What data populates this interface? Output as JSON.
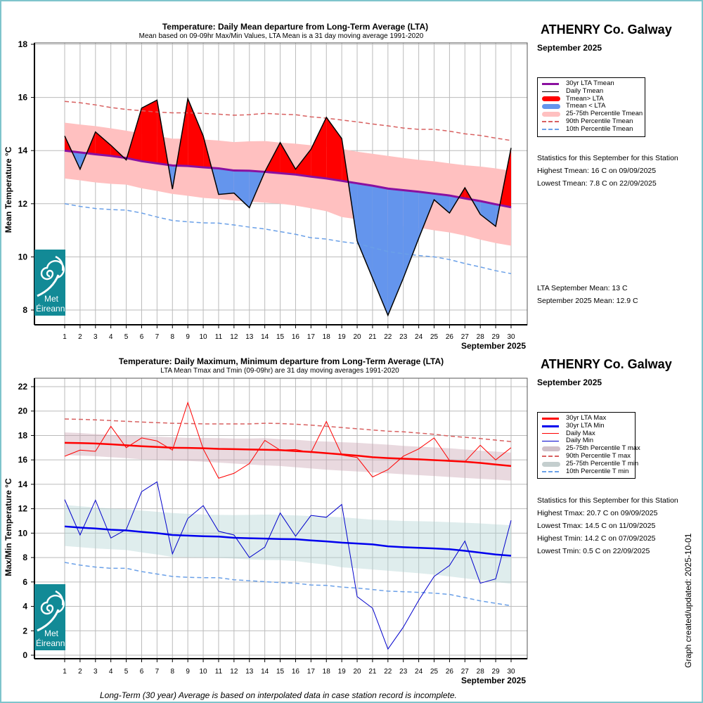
{
  "page": {
    "footnote": "Long-Term (30 year) Average is based on interpolated data in case station record is incomplete.",
    "graph_updated": "Graph created/updated:  2025-10-01",
    "logo": {
      "line1": "Met",
      "line2": "Éireann",
      "color": "#128a96"
    }
  },
  "top_panel": {
    "station": "ATHENRY Co. Galway",
    "month": "September 2025",
    "legend": [
      {
        "label": "30yr LTA Tmean",
        "style": "line",
        "color": "#8a10a0"
      },
      {
        "label": "Daily Tmean",
        "style": "thin-line",
        "color": "#000000"
      },
      {
        "label": "Tmean> LTA",
        "style": "thick",
        "color": "#ff0000"
      },
      {
        "label": "Tmean < LTA",
        "style": "thick",
        "color": "#6495ed"
      },
      {
        "label": "25-75th Percentile Tmean",
        "style": "thick",
        "color": "#ffc0c0"
      },
      {
        "label": "90th Percentile Tmean",
        "style": "dash",
        "color": "#d86060"
      },
      {
        "label": "10th Percentile Tmean",
        "style": "dash",
        "color": "#6aa0e8"
      }
    ],
    "stats_heading": "Statistics for this September for this Station",
    "stats": [
      "Highest Tmean: 16 C on 09/09/2025",
      "Lowest Tmean: 7.8 C on 22/09/2025"
    ],
    "summary": [
      "LTA September Mean: 13 C",
      "September 2025 Mean: 12.9 C"
    ]
  },
  "bottom_panel": {
    "station": "ATHENRY Co. Galway",
    "month": "September 2025",
    "legend": [
      {
        "label": "30yr LTA Max",
        "style": "line",
        "color": "#ff0000"
      },
      {
        "label": "30yr LTA Min",
        "style": "line",
        "color": "#0000ee"
      },
      {
        "label": "Daily Max",
        "style": "thin-line",
        "color": "#ff0000"
      },
      {
        "label": "Daily Min",
        "style": "thin-line",
        "color": "#0000cc"
      },
      {
        "label": "25-75th Percentile T max",
        "style": "thick",
        "color": "#d0c0c8"
      },
      {
        "label": "90th Percentile T max",
        "style": "dash",
        "color": "#d86060"
      },
      {
        "label": "25-75th Percentile T min",
        "style": "thick",
        "color": "#c4cece"
      },
      {
        "label": "10th Percentile T min",
        "style": "dash",
        "color": "#6aa0e8"
      }
    ],
    "stats_heading": "Statistics for this September for this Station",
    "stats": [
      "Highest Tmax: 20.7 C on 09/09/2025",
      "Lowest Tmax: 14.5 C on 11/09/2025",
      "Highest Tmin: 14.2 C on 07/09/2025",
      "Lowest Tmin: 0.5 C on 22/09/2025"
    ]
  },
  "chart_data": [
    {
      "type": "area",
      "title": "Temperature: Daily Mean departure from Long-Term Average (LTA)",
      "subtitle": "Mean based on 09-09hr Max/Min Values, LTA Mean is a 31 day moving average 1991-2020",
      "xlabel": "September 2025",
      "ylabel": "Mean Temperature °C",
      "ylim": [
        7.4,
        18.1
      ],
      "yticks": [
        8,
        10,
        12,
        14,
        16,
        18
      ],
      "x": [
        1,
        2,
        3,
        4,
        5,
        6,
        7,
        8,
        9,
        10,
        11,
        12,
        13,
        14,
        15,
        16,
        17,
        18,
        19,
        20,
        21,
        22,
        23,
        24,
        25,
        26,
        27,
        28,
        29,
        30
      ],
      "grid": true,
      "series": [
        {
          "name": "Daily Tmean",
          "color": "#000000",
          "values": [
            14.55,
            13.3,
            14.7,
            14.2,
            13.65,
            15.6,
            15.9,
            12.55,
            15.95,
            14.55,
            12.35,
            12.4,
            11.85,
            13.2,
            14.3,
            13.3,
            14.05,
            15.25,
            14.45,
            10.6,
            9.2,
            7.8,
            9.2,
            10.7,
            12.15,
            11.65,
            12.6,
            11.6,
            11.15,
            14.1
          ]
        },
        {
          "name": "30yr LTA Tmean",
          "color": "#8a10a0",
          "values": [
            14.0,
            13.93,
            13.86,
            13.8,
            13.72,
            13.6,
            13.52,
            13.44,
            13.42,
            13.37,
            13.33,
            13.25,
            13.24,
            13.2,
            13.15,
            13.1,
            13.02,
            12.95,
            12.86,
            12.77,
            12.68,
            12.57,
            12.51,
            12.45,
            12.38,
            12.31,
            12.2,
            12.1,
            11.98,
            11.87
          ]
        },
        {
          "name": "25th Percentile Tmean",
          "values": [
            12.95,
            12.88,
            12.8,
            12.75,
            12.72,
            12.58,
            12.48,
            12.37,
            12.3,
            12.22,
            12.18,
            12.12,
            12.08,
            12.04,
            12.0,
            11.93,
            11.83,
            11.72,
            11.5,
            11.42,
            11.3,
            11.2,
            11.15,
            11.1,
            11.0,
            10.92,
            10.8,
            10.65,
            10.52,
            10.42
          ]
        },
        {
          "name": "75th Percentile Tmean",
          "values": [
            15.05,
            14.98,
            14.92,
            14.84,
            14.75,
            14.65,
            14.55,
            14.45,
            14.45,
            14.42,
            14.38,
            14.32,
            14.35,
            14.36,
            14.3,
            14.26,
            14.2,
            14.14,
            14.06,
            13.96,
            13.88,
            13.8,
            13.72,
            13.65,
            13.6,
            13.52,
            13.45,
            13.4,
            13.33,
            13.24
          ]
        },
        {
          "name": "90th Percentile Tmean",
          "color": "#d86060",
          "dash": true,
          "values": [
            15.85,
            15.8,
            15.72,
            15.62,
            15.55,
            15.5,
            15.45,
            15.42,
            15.42,
            15.4,
            15.37,
            15.33,
            15.35,
            15.4,
            15.37,
            15.35,
            15.27,
            15.22,
            15.15,
            15.08,
            15.0,
            14.93,
            14.85,
            14.8,
            14.8,
            14.73,
            14.63,
            14.57,
            14.47,
            14.38
          ]
        },
        {
          "name": "10th Percentile Tmean",
          "color": "#6aa0e8",
          "dash": true,
          "values": [
            12.0,
            11.9,
            11.82,
            11.78,
            11.76,
            11.65,
            11.5,
            11.37,
            11.32,
            11.28,
            11.27,
            11.2,
            11.12,
            11.05,
            10.95,
            10.85,
            10.72,
            10.67,
            10.57,
            10.5,
            10.35,
            10.2,
            10.12,
            10.05,
            10.0,
            9.9,
            9.75,
            9.62,
            9.48,
            9.37
          ]
        }
      ]
    },
    {
      "type": "line",
      "title": "Temperature: Daily Maximum, Minimum departure from Long-Term Average (LTA)",
      "subtitle": "LTA Mean Tmax and Tmin (09-09hr) are 31 day moving averages 1991-2020",
      "xlabel": "September 2025",
      "ylabel": "Max/Min Temperature °C",
      "ylim": [
        -0.4,
        22.7
      ],
      "yticks": [
        0,
        2,
        4,
        6,
        8,
        10,
        12,
        14,
        16,
        18,
        20,
        22
      ],
      "x": [
        1,
        2,
        3,
        4,
        5,
        6,
        7,
        8,
        9,
        10,
        11,
        12,
        13,
        14,
        15,
        16,
        17,
        18,
        19,
        20,
        21,
        22,
        23,
        24,
        25,
        26,
        27,
        28,
        29,
        30
      ],
      "grid": true,
      "series": [
        {
          "name": "Daily Max",
          "color": "#ff0000",
          "values": [
            16.3,
            16.8,
            16.7,
            18.75,
            17.0,
            17.8,
            17.55,
            16.8,
            20.7,
            16.9,
            14.5,
            14.9,
            15.7,
            17.6,
            16.8,
            16.85,
            16.6,
            19.15,
            16.4,
            16.2,
            14.6,
            15.2,
            16.3,
            16.9,
            17.8,
            15.95,
            15.85,
            17.2,
            16.0,
            17.0
          ]
        },
        {
          "name": "Daily Min",
          "color": "#0000cc",
          "values": [
            12.75,
            9.85,
            12.7,
            9.6,
            10.3,
            13.4,
            14.2,
            8.3,
            11.2,
            12.25,
            10.15,
            9.85,
            8.0,
            8.85,
            11.65,
            9.75,
            11.45,
            11.3,
            12.35,
            4.8,
            3.85,
            0.5,
            2.3,
            4.5,
            6.45,
            7.35,
            9.35,
            5.9,
            6.25,
            11.05
          ]
        },
        {
          "name": "30yr LTA Max",
          "color": "#ff0000",
          "values": [
            17.4,
            17.38,
            17.34,
            17.28,
            17.2,
            17.12,
            17.06,
            17.0,
            16.98,
            16.95,
            16.9,
            16.88,
            16.85,
            16.83,
            16.8,
            16.72,
            16.65,
            16.55,
            16.45,
            16.35,
            16.22,
            16.15,
            16.1,
            16.05,
            15.98,
            15.92,
            15.85,
            15.75,
            15.62,
            15.5
          ]
        },
        {
          "name": "30yr LTA Min",
          "color": "#0000ee",
          "values": [
            10.55,
            10.45,
            10.38,
            10.28,
            10.22,
            10.1,
            10.0,
            9.85,
            9.8,
            9.75,
            9.72,
            9.62,
            9.58,
            9.55,
            9.52,
            9.5,
            9.4,
            9.32,
            9.22,
            9.15,
            9.08,
            8.92,
            8.85,
            8.8,
            8.75,
            8.68,
            8.55,
            8.4,
            8.25,
            8.15
          ]
        },
        {
          "name": "25th Percentile T max",
          "values": [
            16.4,
            16.35,
            16.3,
            16.22,
            16.15,
            16.05,
            16.0,
            15.95,
            15.92,
            15.85,
            15.78,
            15.7,
            15.62,
            15.55,
            15.5,
            15.4,
            15.3,
            15.2,
            15.12,
            15.05,
            14.98,
            14.9,
            14.82,
            14.75,
            14.68,
            14.6,
            14.52,
            14.45,
            14.38,
            14.3
          ]
        },
        {
          "name": "75th Percentile T max",
          "values": [
            18.25,
            18.2,
            18.12,
            18.05,
            18.0,
            17.95,
            17.9,
            17.85,
            17.8,
            17.8,
            17.78,
            17.75,
            17.75,
            17.78,
            17.7,
            17.65,
            17.55,
            17.5,
            17.45,
            17.4,
            17.32,
            17.25,
            17.15,
            17.08,
            17.02,
            16.95,
            16.85,
            16.75,
            16.68,
            16.6
          ]
        },
        {
          "name": "90th Percentile T max",
          "color": "#d86060",
          "dash": true,
          "values": [
            19.35,
            19.32,
            19.28,
            19.22,
            19.16,
            19.1,
            19.05,
            19.0,
            18.98,
            18.95,
            18.95,
            18.95,
            18.95,
            19.0,
            18.98,
            18.92,
            18.85,
            18.75,
            18.65,
            18.55,
            18.45,
            18.35,
            18.3,
            18.2,
            18.1,
            17.95,
            17.85,
            17.75,
            17.62,
            17.5
          ]
        },
        {
          "name": "25th Percentile T min",
          "values": [
            8.95,
            8.85,
            8.75,
            8.68,
            8.62,
            8.42,
            8.25,
            8.05,
            8.02,
            8.0,
            7.98,
            7.92,
            7.85,
            7.8,
            7.78,
            7.72,
            7.55,
            7.42,
            7.2,
            7.12,
            7.02,
            6.92,
            6.82,
            6.72,
            6.6,
            6.45,
            6.3,
            6.15,
            6.0,
            5.85
          ]
        },
        {
          "name": "75th Percentile T min",
          "values": [
            12.3,
            12.2,
            12.1,
            12.02,
            11.95,
            11.85,
            11.75,
            11.65,
            11.58,
            11.52,
            11.5,
            11.48,
            11.5,
            11.52,
            11.5,
            11.45,
            11.4,
            11.35,
            11.3,
            11.2,
            11.1,
            11.05,
            11.0,
            10.98,
            10.95,
            10.9,
            10.85,
            10.8,
            10.72,
            10.65
          ]
        },
        {
          "name": "10th Percentile T min",
          "color": "#6aa0e8",
          "dash": true,
          "values": [
            7.6,
            7.38,
            7.22,
            7.12,
            7.12,
            6.85,
            6.65,
            6.45,
            6.38,
            6.35,
            6.35,
            6.18,
            6.1,
            6.02,
            5.95,
            5.9,
            5.75,
            5.72,
            5.58,
            5.5,
            5.38,
            5.25,
            5.2,
            5.15,
            5.08,
            4.98,
            4.72,
            4.45,
            4.25,
            4.05
          ]
        }
      ]
    }
  ]
}
